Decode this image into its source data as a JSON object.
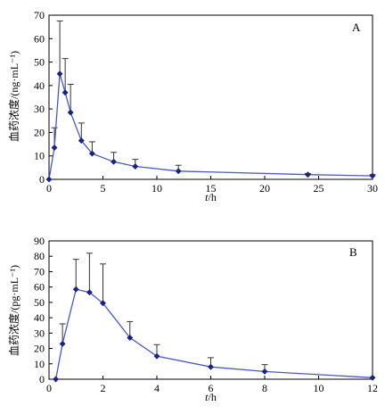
{
  "chart_data": [
    {
      "type": "line",
      "panel_label": "A",
      "xlabel": "t/h",
      "ylabel": "血药浓度/(ng·mL⁻¹)",
      "xlim": [
        0,
        30
      ],
      "ylim": [
        0,
        70
      ],
      "xticks": [
        0,
        5,
        10,
        15,
        20,
        25,
        30
      ],
      "yticks": [
        0,
        10,
        20,
        30,
        40,
        50,
        60,
        70
      ],
      "series": [
        {
          "x": [
            0,
            0.5,
            1,
            1.5,
            2,
            3,
            4,
            6,
            8,
            12,
            24,
            30
          ],
          "y": [
            0,
            13.5,
            45,
            37,
            28.5,
            16.5,
            11,
            7.5,
            5.5,
            3.5,
            2,
            1.5
          ],
          "error_plus": [
            0,
            8.5,
            22.5,
            14.5,
            12,
            7.5,
            5,
            4,
            3,
            2.5,
            0.5,
            0.5
          ]
        }
      ],
      "color": "#4a58c8",
      "grid": false
    },
    {
      "type": "line",
      "panel_label": "B",
      "xlabel": "t/h",
      "ylabel": "血药浓度/(pg·mL⁻¹)",
      "xlim": [
        0,
        12
      ],
      "ylim": [
        0,
        90
      ],
      "xticks": [
        0,
        2,
        4,
        6,
        8,
        10,
        12
      ],
      "yticks": [
        0,
        10,
        20,
        30,
        40,
        50,
        60,
        70,
        80,
        90
      ],
      "series": [
        {
          "x": [
            0.25,
            0.5,
            1,
            1.5,
            2,
            3,
            4,
            6,
            8,
            12
          ],
          "y": [
            0,
            23,
            58.5,
            56.5,
            49.5,
            27,
            15,
            8,
            5,
            1
          ],
          "error_plus": [
            0,
            13,
            19.5,
            25.5,
            25.5,
            10.5,
            7.5,
            6,
            4.5,
            0
          ]
        }
      ],
      "color": "#4a58c8",
      "grid": false
    }
  ]
}
